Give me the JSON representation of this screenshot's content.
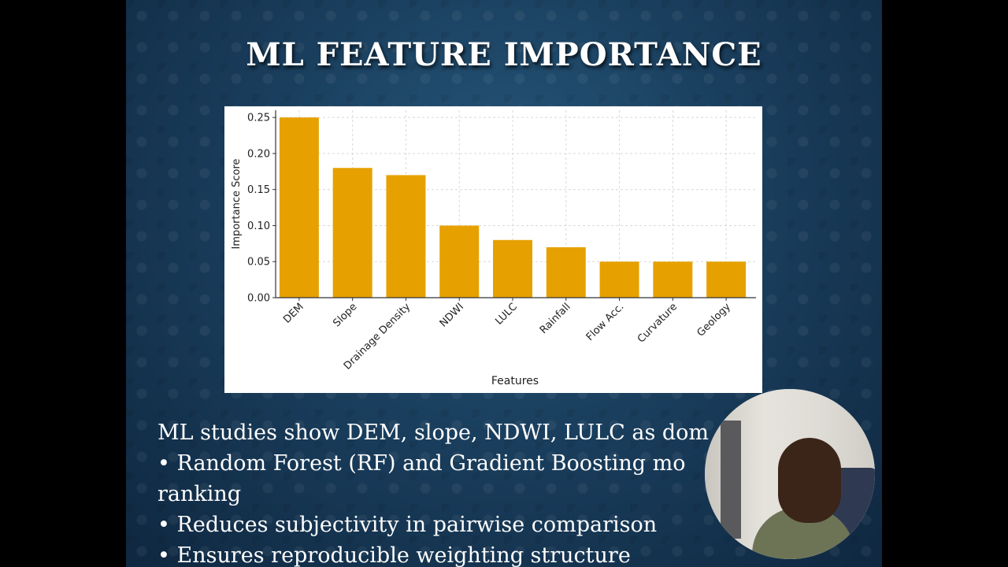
{
  "slide": {
    "title": "ML FEATURE IMPORTANCE",
    "bullets": [
      "ML studies show DEM, slope, NDWI, LULC as dom",
      "• Random Forest (RF) and Gradient Boosting mo",
      "ranking",
      "• Reduces subjectivity in pairwise comparison",
      "• Ensures reproducible weighting structure"
    ]
  },
  "chart_data": {
    "type": "bar",
    "categories": [
      "DEM",
      "Slope",
      "Drainage Density",
      "NDWI",
      "LULC",
      "Rainfall",
      "Flow Acc.",
      "Curvature",
      "Geology"
    ],
    "values": [
      0.25,
      0.18,
      0.17,
      0.1,
      0.08,
      0.07,
      0.05,
      0.05,
      0.05
    ],
    "title": "",
    "xlabel": "Features",
    "ylabel": "Importance Score",
    "ylim": [
      0,
      0.26
    ],
    "yticks": [
      "0.00",
      "0.05",
      "0.10",
      "0.15",
      "0.20",
      "0.25"
    ],
    "grid": true,
    "bar_color": "#e6a100",
    "grid_color": "#d9d9d9"
  },
  "webcam": {
    "icon": "presenter-webcam"
  }
}
